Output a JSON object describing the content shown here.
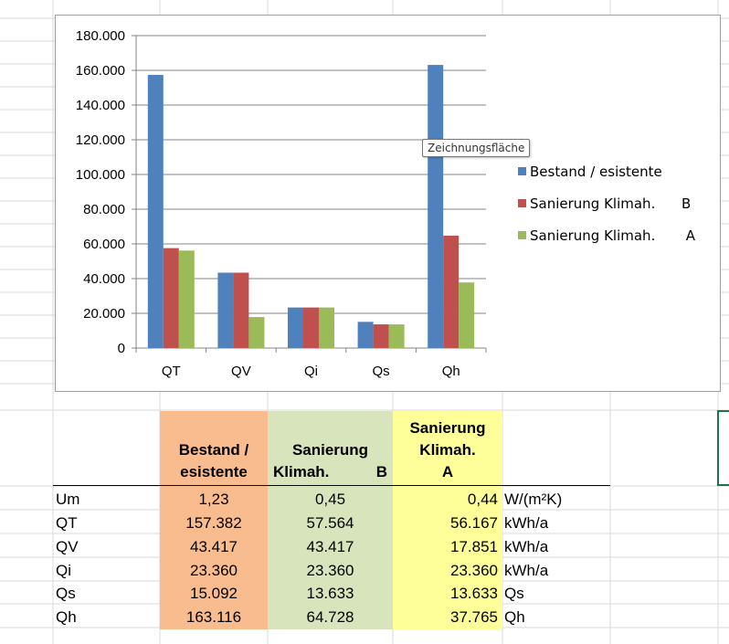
{
  "chart_data": {
    "type": "bar",
    "categories": [
      "QT",
      "QV",
      "Qi",
      "Qs",
      "Qh"
    ],
    "series": [
      {
        "name": "Bestand / esistente",
        "color": "#4f81bd",
        "values": [
          157382,
          43417,
          23360,
          15092,
          163116
        ]
      },
      {
        "name": "Sanierung Klimah.      B",
        "color": "#c0504d",
        "values": [
          57564,
          43417,
          23360,
          13633,
          64728
        ]
      },
      {
        "name": "Sanierung Klimah.       A",
        "color": "#9bbb59",
        "values": [
          56167,
          17851,
          23360,
          13633,
          37765
        ]
      }
    ],
    "y_ticks": [
      "0",
      "20.000",
      "40.000",
      "60.000",
      "80.000",
      "100.000",
      "120.000",
      "140.000",
      "160.000",
      "180.000"
    ],
    "ylim": [
      0,
      180000
    ],
    "grid": true,
    "legend_position": "right"
  },
  "tooltip": "Zeichnungsfläche",
  "table": {
    "headers": [
      {
        "lines": [
          "Bestand /",
          "esistente"
        ],
        "fill": "#f9bc8f"
      },
      {
        "lines": [
          "Sanierung",
          "Klimah.",
          "B"
        ],
        "fill": "#d8e4bc"
      },
      {
        "lines": [
          "Sanierung",
          "Klimah.",
          "A"
        ],
        "fill": "#ffff99"
      }
    ],
    "rows": [
      {
        "name": "Um",
        "a": "1,23",
        "b": "0,45",
        "c": "0,44",
        "unit": "W/(m²K)"
      },
      {
        "name": "QT",
        "a": "157.382",
        "b": "57.564",
        "c": "56.167",
        "unit": "kWh/a"
      },
      {
        "name": "QV",
        "a": "43.417",
        "b": "43.417",
        "c": "17.851",
        "unit": "kWh/a"
      },
      {
        "name": "Qi",
        "a": "23.360",
        "b": "23.360",
        "c": "23.360",
        "unit": "kWh/a"
      },
      {
        "name": "Qs",
        "a": "15.092",
        "b": "13.633",
        "c": "13.633",
        "unit": "Qs"
      },
      {
        "name": "Qh",
        "a": "163.116",
        "b": "64.728",
        "c": "37.765",
        "unit": "Qh"
      }
    ]
  }
}
